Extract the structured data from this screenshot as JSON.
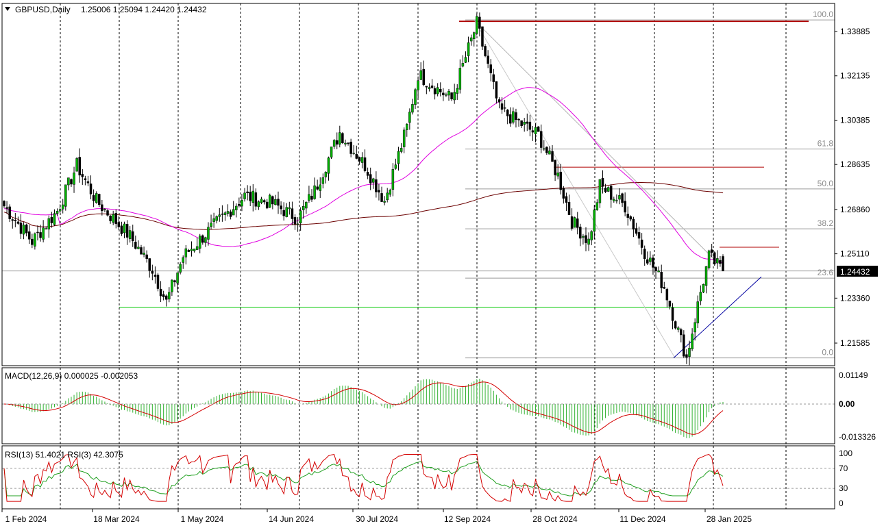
{
  "header": {
    "symbol": "GBPUSD,Daily",
    "ohlc": "1.25006 1.25094 1.24420 1.24432"
  },
  "current_price_label": "1.24432",
  "price_axis": {
    "ticks": [
      "1.33885",
      "1.32135",
      "1.30385",
      "1.28635",
      "1.26860",
      "1.25110",
      "1.23360",
      "1.21585"
    ],
    "tick_values": [
      1.33885,
      1.32135,
      1.30385,
      1.28635,
      1.2686,
      1.2511,
      1.2336,
      1.21585
    ]
  },
  "date_axis": [
    "1 Feb 2024",
    "18 Mar 2024",
    "1 May 2024",
    "14 Jun 2024",
    "30 Jul 2024",
    "12 Sep 2024",
    "28 Oct 2024",
    "11 Dec 2024",
    "28 Jan 2025"
  ],
  "fibonacci": {
    "levels": [
      "100.0",
      "61.8",
      "50.0",
      "38.2",
      "23.6",
      "0.0"
    ],
    "level_values": [
      100.0,
      61.8,
      50.0,
      38.2,
      23.6,
      0.0
    ],
    "high": 1.3434,
    "low": 1.21
  },
  "macd": {
    "label": "MACD(12,26,9) 0.000025 -0.002053",
    "ticks": [
      "0.01149",
      "0.00",
      "-0.013326"
    ],
    "tick_values": [
      0.01149,
      0.0,
      -0.013326
    ]
  },
  "rsi": {
    "label": "RSI(13) 51.4021  RSI(3) 42.3075",
    "ticks": [
      "100",
      "70",
      "30",
      "0"
    ],
    "tick_values": [
      100,
      70,
      30,
      0
    ]
  },
  "colors": {
    "bull": "#00b400",
    "bear": "#000000",
    "ma_short": "#e000e0",
    "ma_long": "#6b0000",
    "resistance": "#b00000",
    "support": "#00c800",
    "trendline": "#0000a0",
    "fib": "#9a9a9a",
    "macd_hist": "#2fb02f",
    "macd_signal": "#d40000",
    "rsi_fast": "#d40000",
    "rsi_slow": "#20a020"
  },
  "chart_data": {
    "type": "candlestick",
    "title": "GBPUSD,Daily",
    "x_range": [
      "1 Feb 2024",
      "28 Jan 2025"
    ],
    "ylim": [
      1.2085,
      1.3445
    ],
    "key_prices": {
      "open": 1.25006,
      "high": 1.25094,
      "low": 1.2442,
      "close": 1.24432,
      "period_high": 1.3434,
      "period_low": 1.21,
      "support": 1.23
    },
    "close_path": [
      {
        "date": "1 Feb 2024",
        "close": 1.27
      },
      {
        "date": "14 Feb 2024",
        "close": 1.256
      },
      {
        "date": "27 Feb 2024",
        "close": 1.268
      },
      {
        "date": "8 Mar 2024",
        "close": 1.286
      },
      {
        "date": "18 Mar 2024",
        "close": 1.272
      },
      {
        "date": "2 Apr 2024",
        "close": 1.258
      },
      {
        "date": "15 Apr 2024",
        "close": 1.245
      },
      {
        "date": "22 Apr 2024",
        "close": 1.232
      },
      {
        "date": "1 May 2024",
        "close": 1.25
      },
      {
        "date": "14 May 2024",
        "close": 1.26
      },
      {
        "date": "1 Jun 2024",
        "close": 1.274
      },
      {
        "date": "14 Jun 2024",
        "close": 1.271
      },
      {
        "date": "27 Jun 2024",
        "close": 1.265
      },
      {
        "date": "5 Jul 2024",
        "close": 1.276
      },
      {
        "date": "17 Jul 2024",
        "close": 1.299
      },
      {
        "date": "30 Jul 2024",
        "close": 1.286
      },
      {
        "date": "8 Aug 2024",
        "close": 1.272
      },
      {
        "date": "20 Aug 2024",
        "close": 1.301
      },
      {
        "date": "26 Aug 2024",
        "close": 1.322
      },
      {
        "date": "12 Sep 2024",
        "close": 1.312
      },
      {
        "date": "26 Sep 2024",
        "close": 1.342
      },
      {
        "date": "8 Oct 2024",
        "close": 1.308
      },
      {
        "date": "28 Oct 2024",
        "close": 1.298
      },
      {
        "date": "6 Nov 2024",
        "close": 1.282
      },
      {
        "date": "14 Nov 2024",
        "close": 1.264
      },
      {
        "date": "22 Nov 2024",
        "close": 1.256
      },
      {
        "date": "28 Nov 2024",
        "close": 1.278
      },
      {
        "date": "11 Dec 2024",
        "close": 1.27
      },
      {
        "date": "20 Dec 2024",
        "close": 1.252
      },
      {
        "date": "31 Dec 2024",
        "close": 1.238
      },
      {
        "date": "13 Jan 2025",
        "close": 1.21
      },
      {
        "date": "20 Jan 2025",
        "close": 1.236
      },
      {
        "date": "28 Jan 2025",
        "close": 1.245
      }
    ],
    "moving_averages": [
      {
        "values_at": [
          "1 Feb 2024",
          "1 May 2024",
          "14 Jun 2024",
          "12 Sep 2024",
          "28 Oct 2024",
          "11 Dec 2024",
          "28 Jan 2025"
        ],
        "short": [
          1.2685,
          1.262,
          1.2625,
          1.306,
          1.314,
          1.287,
          1.252
        ],
        "long": [
          1.26,
          1.256,
          1.258,
          1.28,
          1.284,
          1.284,
          1.282
        ]
      }
    ]
  }
}
